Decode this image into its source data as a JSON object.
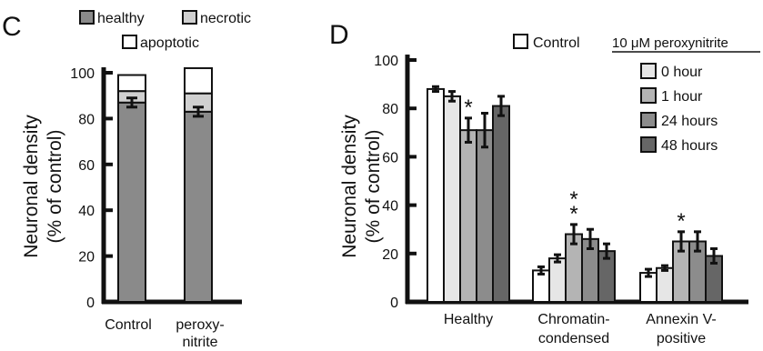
{
  "chart_data": [
    {
      "panel": "C",
      "type": "bar",
      "stacked": true,
      "ylabel": "Neuronal density\n(% of control)",
      "ylim": [
        0,
        100
      ],
      "yticks": [
        0,
        20,
        40,
        60,
        80,
        100
      ],
      "categories": [
        "Control",
        "peroxy-\nnitrite"
      ],
      "series": [
        {
          "name": "healthy",
          "values": [
            87,
            83
          ],
          "errors": [
            2,
            2
          ],
          "color": "#8a8a8a"
        },
        {
          "name": "necrotic",
          "values": [
            5,
            8
          ],
          "color": "#d0d0d0"
        },
        {
          "name": "apoptotic",
          "values": [
            7,
            11
          ],
          "color": "#ffffff"
        }
      ],
      "legend_position": "top"
    },
    {
      "panel": "D",
      "type": "bar",
      "ylabel": "Neuronal density\n(% of control)",
      "ylim": [
        0,
        100
      ],
      "yticks": [
        0,
        20,
        40,
        60,
        80,
        100
      ],
      "categories": [
        "Healthy",
        "Chromatin-\ncondensed",
        "Annexin V-\npositive"
      ],
      "legend_header": "10 μM peroxynitrite",
      "series": [
        {
          "name": "Control",
          "values": [
            88,
            13,
            12
          ],
          "errors": [
            1,
            1.5,
            1.5
          ],
          "color": "#ffffff"
        },
        {
          "name": "0 hour",
          "values": [
            85,
            18,
            14
          ],
          "errors": [
            2,
            1.5,
            1
          ],
          "color": "#e6e6e6"
        },
        {
          "name": "1 hour",
          "values": [
            71,
            28,
            25
          ],
          "errors": [
            5,
            4,
            4
          ],
          "color": "#b4b4b4"
        },
        {
          "name": "24 hours",
          "values": [
            71,
            26,
            25
          ],
          "errors": [
            7,
            4,
            4
          ],
          "color": "#8c8c8c"
        },
        {
          "name": "48 hours",
          "values": [
            81,
            21,
            19
          ],
          "errors": [
            4,
            3,
            3
          ],
          "color": "#666666"
        }
      ],
      "significance": [
        {
          "category": 0,
          "series": 2,
          "marks": "*"
        },
        {
          "category": 1,
          "series": 2,
          "marks": "**"
        },
        {
          "category": 2,
          "series": 2,
          "marks": "*"
        }
      ],
      "legend_position": "top-right"
    }
  ]
}
